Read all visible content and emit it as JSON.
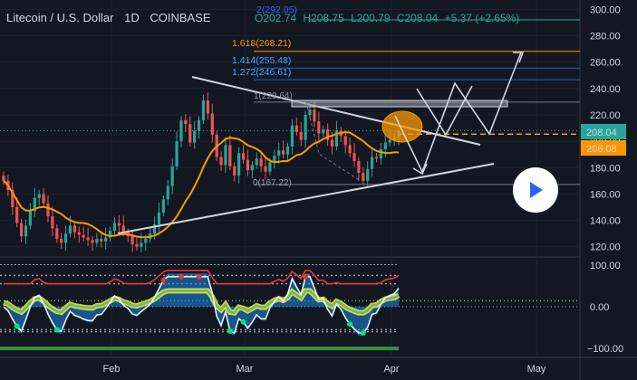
{
  "header": {
    "symbol": "Litecoin / U.S. Dollar",
    "interval": "1D",
    "exchange": "COINBASE",
    "open": "O202.74",
    "high": "H208.75",
    "low": "L200.79",
    "close": "C208.04",
    "change": "+5.37 (+2.65%)"
  },
  "colors": {
    "background": "#131722",
    "up": "#26a69a",
    "down": "#ef5350",
    "ma": "#ff9800",
    "trend": "#d1d4dc",
    "fib": "#2962ff",
    "fib_top": "#ff9800",
    "osc_line": "#e53935",
    "osc_green": "#66bb6a",
    "osc_yellow": "#ffeb3b",
    "osc_blue": "#1e88e5"
  },
  "price_badges": {
    "last": "208.04",
    "ma": "206.08"
  },
  "fib_labels": {
    "l1618": "1.618(268.21)",
    "l1414": "1.414(255.48)",
    "l1272": "1.272(246.61)",
    "l1": "1(229.64)",
    "l0": "0(167.22)",
    "l2": "2(292.05)"
  },
  "chart_data": {
    "type": "candlestick",
    "symbol": "LTCUSD",
    "price_axis": {
      "ticks": [
        300,
        280,
        260,
        240,
        220,
        200,
        180,
        160,
        140,
        120
      ],
      "ylim": [
        115,
        303
      ]
    },
    "time_axis": {
      "labels": [
        "Feb",
        "Mar",
        "Apr",
        "May"
      ]
    },
    "fib_levels": [
      {
        "ratio": 0,
        "price": 167.22
      },
      {
        "ratio": 1,
        "price": 229.64
      },
      {
        "ratio": 1.272,
        "price": 246.61
      },
      {
        "ratio": 1.414,
        "price": 255.48
      },
      {
        "ratio": 1.618,
        "price": 268.21
      },
      {
        "ratio": 2,
        "price": 292.05
      }
    ],
    "last_close": 208.04,
    "ma_value": 206.08,
    "closes": [
      170,
      163,
      150,
      138,
      128,
      136,
      147,
      157,
      160,
      153,
      143,
      134,
      126,
      123,
      130,
      136,
      131,
      129,
      127,
      125,
      123,
      126,
      124,
      127,
      132,
      138,
      136,
      131,
      128,
      122,
      120,
      123,
      126,
      130,
      137,
      146,
      156,
      166,
      181,
      200,
      216,
      213,
      199,
      208,
      216,
      231,
      221,
      205,
      188,
      182,
      197,
      181,
      174,
      191,
      186,
      178,
      182,
      187,
      181,
      177,
      184,
      189,
      193,
      190,
      196,
      212,
      207,
      201,
      220,
      224,
      215,
      206,
      209,
      201,
      196,
      208,
      204,
      197,
      191,
      185,
      176,
      170,
      179,
      188,
      187,
      194,
      199,
      201,
      203,
      208
    ],
    "oscillator": {
      "ticks": [
        100,
        0,
        -100
      ],
      "ylim": [
        -115,
        115
      ],
      "bands": [
        75,
        55,
        -55,
        -60
      ]
    }
  }
}
